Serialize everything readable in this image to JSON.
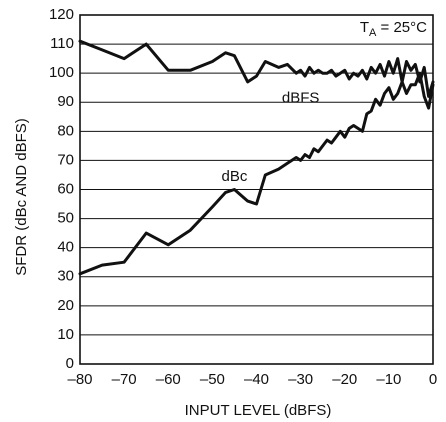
{
  "chart_data": {
    "type": "line",
    "title": "",
    "xlabel": "INPUT LEVEL (dBFS)",
    "ylabel": "SFDR (dBc AND dBFS)",
    "xlim": [
      -80,
      0
    ],
    "ylim": [
      0,
      120
    ],
    "x_ticks": [
      -80,
      -70,
      -60,
      -50,
      -40,
      -30,
      -20,
      -10,
      0
    ],
    "x_tick_labels": [
      "–80",
      "–70",
      "–60",
      "–50",
      "–40",
      "–30",
      "–20",
      "–10",
      "0"
    ],
    "y_ticks": [
      0,
      10,
      20,
      30,
      40,
      50,
      60,
      70,
      80,
      90,
      100,
      110,
      120
    ],
    "y_tick_labels": [
      "0",
      "10",
      "20",
      "30",
      "40",
      "50",
      "60",
      "70",
      "80",
      "90",
      "100",
      "110",
      "120"
    ],
    "grid": "horizontal",
    "annotation": {
      "prefix": "T",
      "sub": "A",
      "suffix": " = 25°C"
    },
    "series": [
      {
        "name": "dBFS",
        "label_at": [
          -30,
          90
        ],
        "x": [
          -80,
          -75,
          -70,
          -65,
          -60,
          -55,
          -50,
          -47,
          -45,
          -42,
          -40,
          -38,
          -35,
          -33,
          -31,
          -30,
          -29,
          -28,
          -27,
          -26,
          -25,
          -24,
          -23,
          -22,
          -21,
          -20,
          -19,
          -18,
          -17,
          -16,
          -15,
          -14,
          -13,
          -12,
          -11,
          -10,
          -9,
          -8,
          -7,
          -6,
          -5,
          -4,
          -3,
          -2,
          -1,
          0
        ],
        "y": [
          111,
          108,
          105,
          110,
          101,
          101,
          104,
          107,
          106,
          97,
          99,
          104,
          102,
          103,
          100,
          101,
          99,
          102,
          100,
          101,
          100,
          100,
          101,
          99,
          100,
          101,
          98,
          100,
          99,
          101,
          98,
          102,
          100,
          103,
          99,
          104,
          100,
          105,
          97,
          104,
          101,
          103,
          97,
          102,
          92,
          97
        ]
      },
      {
        "name": "dBc",
        "label_at": [
          -45,
          63
        ],
        "x": [
          -80,
          -75,
          -70,
          -65,
          -60,
          -55,
          -50,
          -47,
          -45,
          -42,
          -40,
          -38,
          -35,
          -33,
          -31,
          -30,
          -29,
          -28,
          -27,
          -26,
          -25,
          -24,
          -23,
          -22,
          -21,
          -20,
          -19,
          -18,
          -17,
          -16,
          -15,
          -14,
          -13,
          -12,
          -11,
          -10,
          -9,
          -8,
          -7,
          -6,
          -5,
          -4,
          -3,
          -2,
          -1,
          0
        ],
        "y": [
          31,
          34,
          35,
          45,
          41,
          46,
          54,
          59,
          60,
          56,
          55,
          65,
          67,
          69,
          71,
          70,
          72,
          71,
          74,
          73,
          75,
          77,
          76,
          78,
          80,
          78,
          81,
          82,
          81,
          80,
          86,
          87,
          91,
          89,
          93,
          95,
          91,
          93,
          97,
          93,
          96,
          96,
          100,
          92,
          88,
          96
        ]
      }
    ]
  }
}
